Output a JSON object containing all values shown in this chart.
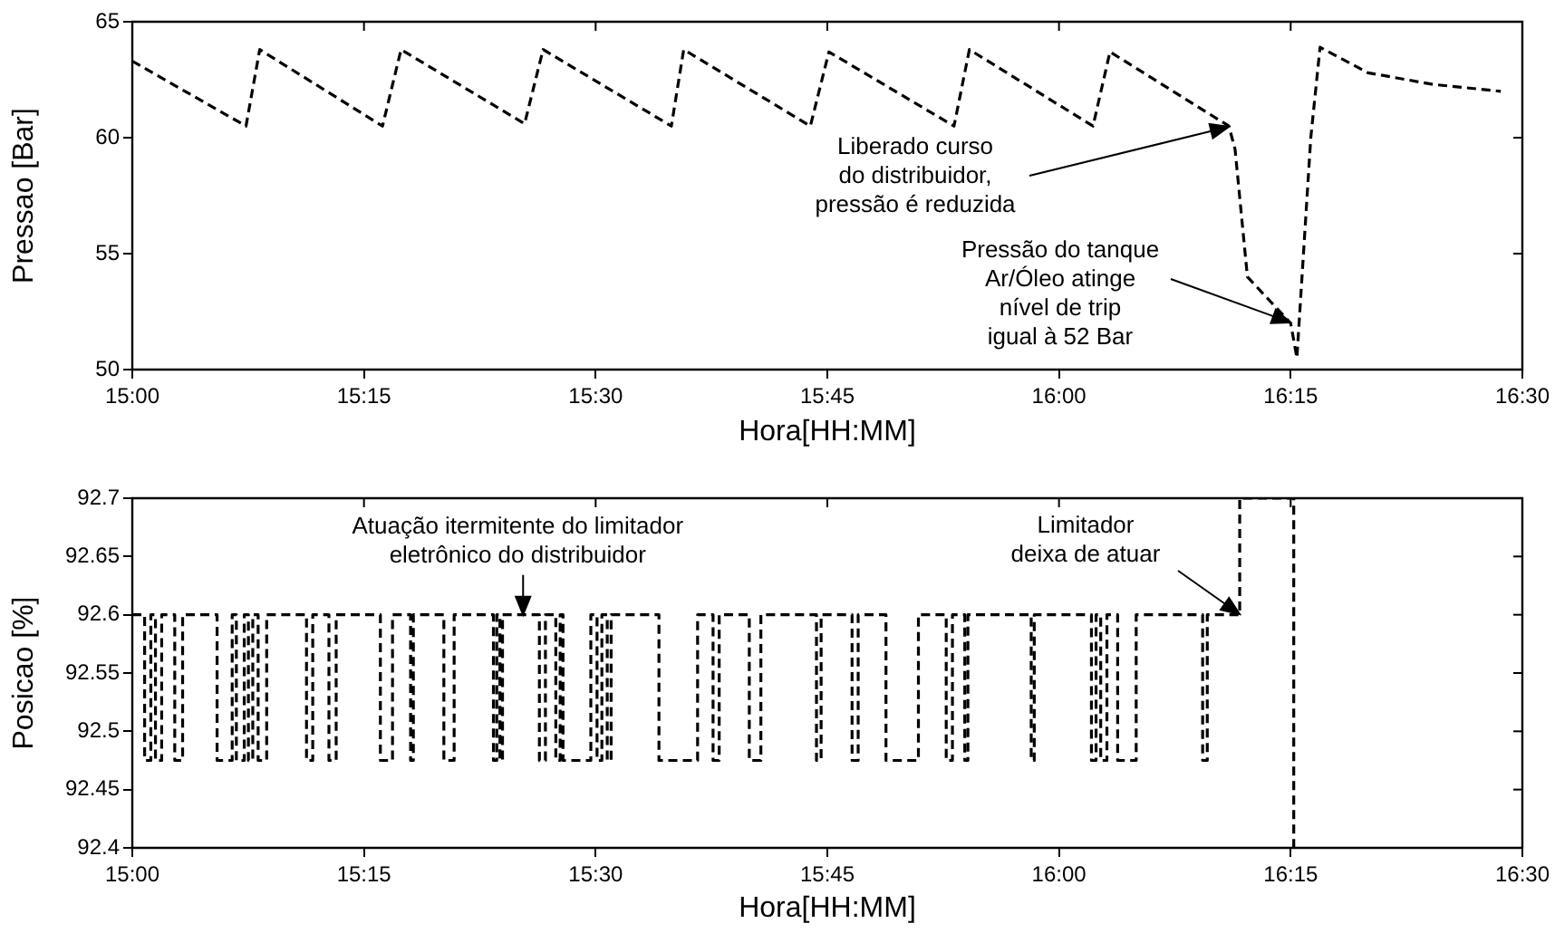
{
  "chart_data": [
    {
      "type": "line",
      "xlabel": "Hora[HH:MM]",
      "ylabel": "Pressao [Bar]",
      "color": "#000000",
      "line_style": "dashed",
      "marker": "none",
      "grid": false,
      "x": [
        15.0,
        15.1227,
        15.1375,
        15.27,
        15.29,
        15.4233,
        15.4433,
        15.5817,
        15.595,
        15.7317,
        15.7517,
        15.8867,
        15.9033,
        16.0367,
        16.055,
        16.1833,
        16.19,
        16.2033,
        16.25,
        16.2567,
        16.2717,
        16.2817,
        16.3333,
        16.4033,
        16.4767
      ],
      "values": [
        63.3,
        60.5,
        63.8,
        60.5,
        63.8,
        60.6,
        63.8,
        60.5,
        63.8,
        60.5,
        63.7,
        60.5,
        63.8,
        60.5,
        63.7,
        60.5,
        59.5,
        54,
        52,
        50.5,
        60,
        63.9,
        62.8,
        62.3,
        62.0
      ],
      "xlim": [
        15.0,
        16.5
      ],
      "xticks": [
        {
          "value": 15.0,
          "label": "15:00"
        },
        {
          "value": 15.25,
          "label": "15:15"
        },
        {
          "value": 15.5,
          "label": "15:30"
        },
        {
          "value": 15.75,
          "label": "15:45"
        },
        {
          "value": 16.0,
          "label": "16:00"
        },
        {
          "value": 16.25,
          "label": "16:15"
        },
        {
          "value": 16.5,
          "label": "16:30"
        }
      ],
      "ylim": [
        50,
        65
      ],
      "yticks": [
        50,
        55,
        60,
        65
      ],
      "annotations": [
        "Liberado curso\ndo distribuidor,\npressão é reduzida",
        "Pressão do tanque\nAr/Óleo atinge\nnível de trip\nigual à 52 Bar"
      ]
    },
    {
      "type": "step",
      "xlabel": "Hora[HH:MM]",
      "ylabel": "Posicao [%]",
      "color": "#000000",
      "line_style": "dashed",
      "marker": "none",
      "grid": false,
      "x": [
        15.0,
        15.0133,
        15.02,
        15.025,
        15.0317,
        15.0458,
        15.0543,
        15.0915,
        15.1078,
        15.1123,
        15.1208,
        15.1253,
        15.13,
        15.1358,
        15.145,
        15.188,
        15.1947,
        15.2122,
        15.22,
        15.2677,
        15.2808,
        15.3003,
        15.3033,
        15.3362,
        15.3473,
        15.3897,
        15.3933,
        15.3967,
        15.3995,
        15.4393,
        15.4458,
        15.457,
        15.4617,
        15.4648,
        15.4948,
        15.5015,
        15.5067,
        15.5125,
        15.5167,
        15.5683,
        15.61,
        15.6267,
        15.6333,
        15.6658,
        15.6783,
        15.7383,
        15.7433,
        15.7767,
        15.7833,
        15.8133,
        15.8483,
        15.8783,
        15.885,
        15.8983,
        15.9017,
        15.97,
        15.9733,
        16.035,
        16.04,
        16.045,
        16.0517,
        16.0633,
        16.0833,
        16.155,
        16.16,
        16.195,
        16.2533
      ],
      "values": [
        92.6,
        92.475,
        92.6,
        92.475,
        92.6,
        92.475,
        92.6,
        92.475,
        92.6,
        92.475,
        92.6,
        92.475,
        92.6,
        92.475,
        92.6,
        92.475,
        92.6,
        92.475,
        92.6,
        92.475,
        92.6,
        92.475,
        92.6,
        92.475,
        92.6,
        92.475,
        92.6,
        92.475,
        92.6,
        92.475,
        92.6,
        92.475,
        92.6,
        92.475,
        92.6,
        92.475,
        92.6,
        92.475,
        92.6,
        92.475,
        92.6,
        92.475,
        92.6,
        92.475,
        92.6,
        92.475,
        92.6,
        92.475,
        92.6,
        92.475,
        92.6,
        92.475,
        92.6,
        92.475,
        92.6,
        92.475,
        92.6,
        92.475,
        92.6,
        92.475,
        92.6,
        92.475,
        92.6,
        92.475,
        92.6,
        92.7,
        92.4
      ],
      "xlim": [
        15.0,
        16.5
      ],
      "xticks": [
        {
          "value": 15.0,
          "label": "15:00"
        },
        {
          "value": 15.25,
          "label": "15:15"
        },
        {
          "value": 15.5,
          "label": "15:30"
        },
        {
          "value": 15.75,
          "label": "15:45"
        },
        {
          "value": 16.0,
          "label": "16:00"
        },
        {
          "value": 16.25,
          "label": "16:15"
        },
        {
          "value": 16.5,
          "label": "16:30"
        }
      ],
      "ylim": [
        92.4,
        92.7
      ],
      "yticks": [
        92.4,
        92.45,
        92.5,
        92.55,
        92.6,
        92.65,
        92.7
      ],
      "annotations": [
        {
          "text": "Atuação itermitente do limitador\neletrônico do distribuidor",
          "x": 15.4217,
          "y": 92.6
        },
        "Limitador\ndeixa de atuar"
      ]
    }
  ]
}
